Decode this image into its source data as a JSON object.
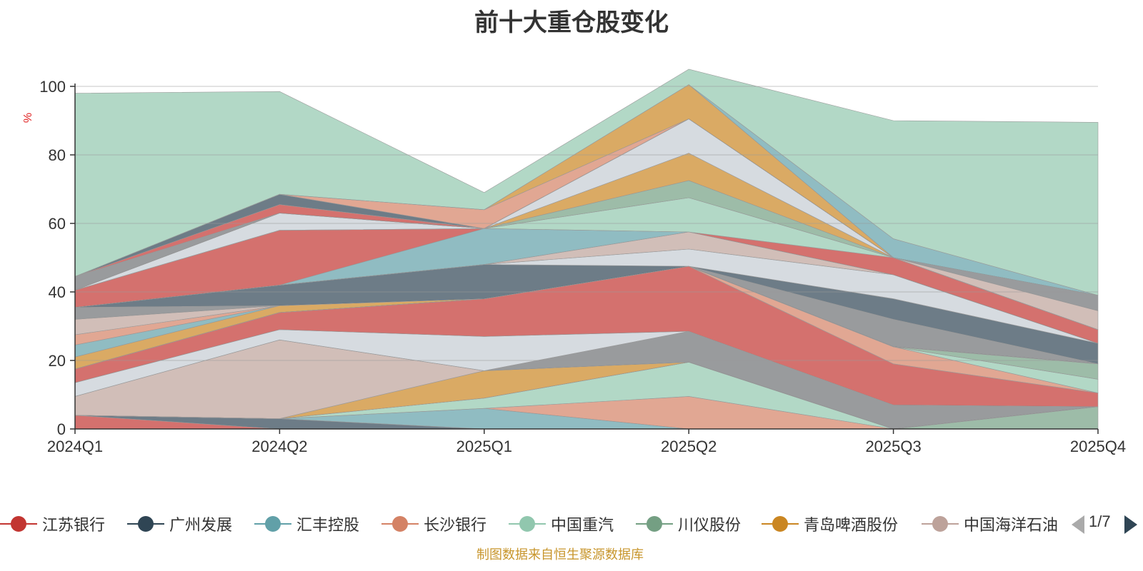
{
  "chart_data": {
    "type": "area",
    "stacked": true,
    "title": "前十大重仓股变化",
    "ylabel": "%",
    "ylim": [
      0,
      100
    ],
    "yticks": [
      0,
      20,
      40,
      60,
      80,
      100
    ],
    "categories": [
      "2024Q1",
      "2024Q2",
      "2025Q1",
      "2025Q2",
      "2025Q3",
      "2025Q4"
    ],
    "grid": true,
    "series": [
      {
        "name": "江苏银行",
        "color": "#c23531",
        "values": [
          4,
          0,
          0,
          0,
          0,
          0
        ]
      },
      {
        "name": "广州发展",
        "color": "#2f4554",
        "values": [
          0,
          3,
          0,
          0,
          0,
          0
        ]
      },
      {
        "name": "汇丰控股",
        "color": "#61a0a8",
        "values": [
          0,
          0,
          6,
          0,
          0,
          0
        ]
      },
      {
        "name": "长沙银行",
        "color": "#d48265",
        "values": [
          0,
          0,
          0,
          9.5,
          0,
          0
        ]
      },
      {
        "name": "中国重汽",
        "color": "#91c7ae",
        "values": [
          0,
          0,
          3,
          10,
          0,
          0
        ]
      },
      {
        "name": "川仪股份",
        "color": "#749f83",
        "values": [
          0,
          0,
          0,
          0,
          0,
          6.5
        ]
      },
      {
        "name": "青岛啤酒股份",
        "color": "#ca8622",
        "values": [
          0,
          0,
          8,
          0,
          0,
          0
        ]
      },
      {
        "name": "中国海洋石油",
        "color": "#bda29a",
        "values": [
          5.5,
          23,
          0,
          0,
          0,
          0
        ]
      },
      {
        "name": "",
        "color": "#6e7074",
        "values": [
          0,
          0,
          0,
          9,
          7,
          0
        ]
      },
      {
        "name": "",
        "color": "#c4ccd3",
        "values": [
          4,
          3,
          10,
          0,
          0,
          0
        ]
      },
      {
        "name": "",
        "color": "#c23531",
        "values": [
          4,
          5,
          11,
          19,
          12,
          4
        ]
      },
      {
        "name": "",
        "color": "#d48265",
        "values": [
          0,
          0,
          0,
          0,
          5,
          0
        ]
      },
      {
        "name": "",
        "color": "#91c7ae",
        "values": [
          0,
          0,
          0,
          0,
          0,
          4
        ]
      },
      {
        "name": "",
        "color": "#749f83",
        "values": [
          0,
          0,
          0,
          0,
          0,
          4.5
        ]
      },
      {
        "name": "",
        "color": "#ca8622",
        "values": [
          3.5,
          2,
          0,
          0,
          0,
          0
        ]
      },
      {
        "name": "",
        "color": "#61a0a8",
        "values": [
          3.5,
          0,
          0,
          0,
          0,
          0
        ]
      },
      {
        "name": "",
        "color": "#d48265",
        "values": [
          3,
          0,
          0,
          0,
          0,
          0
        ]
      },
      {
        "name": "",
        "color": "#bda29a",
        "values": [
          4.5,
          0,
          0,
          0,
          0,
          0
        ]
      },
      {
        "name": "",
        "color": "#6e7074",
        "values": [
          3.5,
          0,
          0,
          0,
          8,
          0
        ]
      },
      {
        "name": "",
        "color": "#2f4554",
        "values": [
          0,
          6,
          10,
          0,
          6,
          6
        ]
      },
      {
        "name": "",
        "color": "#c4ccd3",
        "values": [
          0,
          0,
          0,
          5,
          7,
          0
        ]
      },
      {
        "name": "",
        "color": "#bda29a",
        "values": [
          0,
          0,
          0,
          5,
          0,
          0
        ]
      },
      {
        "name": "",
        "color": "#61a0a8",
        "values": [
          0,
          0,
          10.5,
          0,
          0,
          0
        ]
      },
      {
        "name": "",
        "color": "#c23531",
        "values": [
          5,
          16,
          0,
          0,
          5,
          4
        ]
      },
      {
        "name": "",
        "color": "#91c7ae",
        "values": [
          0,
          0,
          0,
          10,
          0,
          0
        ]
      },
      {
        "name": "",
        "color": "#749f83",
        "values": [
          0,
          0,
          0,
          5,
          0,
          0
        ]
      },
      {
        "name": "",
        "color": "#ca8622",
        "values": [
          0,
          0,
          0,
          8,
          0,
          0
        ]
      },
      {
        "name": "",
        "color": "#c4ccd3",
        "values": [
          0,
          5,
          0,
          10,
          0,
          0
        ]
      },
      {
        "name": "",
        "color": "#bda29a",
        "values": [
          0,
          0,
          0,
          0,
          0,
          5.5
        ]
      },
      {
        "name": "",
        "color": "#6e7074",
        "values": [
          4,
          0,
          0,
          0,
          0,
          4.5
        ]
      },
      {
        "name": "",
        "color": "#c23531",
        "values": [
          0,
          2.5,
          0,
          0,
          0,
          0
        ]
      },
      {
        "name": "",
        "color": "#2f4554",
        "values": [
          0,
          3,
          0,
          0,
          0,
          0
        ]
      },
      {
        "name": "",
        "color": "#d48265",
        "values": [
          0,
          0,
          5.5,
          0,
          0,
          0
        ]
      },
      {
        "name": "",
        "color": "#ca8622",
        "values": [
          0,
          0,
          0,
          10,
          0,
          0
        ]
      },
      {
        "name": "",
        "color": "#61a0a8",
        "values": [
          0,
          0,
          0,
          0,
          5.5,
          0
        ]
      },
      {
        "name": "",
        "color": "#91c7ae",
        "values": [
          53.5,
          30,
          5,
          4.5,
          34.5,
          50.5
        ]
      }
    ]
  },
  "legend": {
    "items": [
      {
        "label": "江苏银行",
        "color": "#c23531"
      },
      {
        "label": "广州发展",
        "color": "#2f4554"
      },
      {
        "label": "汇丰控股",
        "color": "#61a0a8"
      },
      {
        "label": "长沙银行",
        "color": "#d48265"
      },
      {
        "label": "中国重汽",
        "color": "#91c7ae"
      },
      {
        "label": "川仪股份",
        "color": "#749f83"
      },
      {
        "label": "青岛啤酒股份",
        "color": "#ca8622"
      },
      {
        "label": "中国海洋石油",
        "color": "#bda29a"
      }
    ],
    "page_indicator": "1/7"
  },
  "source": "制图数据来自恒生聚源数据库"
}
